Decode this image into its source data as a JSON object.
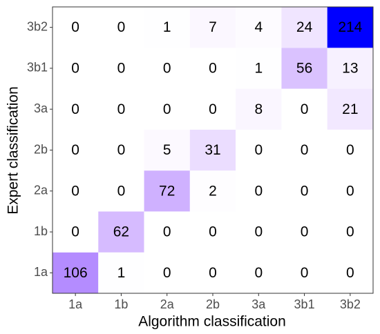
{
  "chart_data": {
    "type": "heatmap",
    "x_label": "Algorithm classification",
    "y_label": "Expert classification",
    "x_categories": [
      "1a",
      "1b",
      "2a",
      "2b",
      "3a",
      "3b1",
      "3b2"
    ],
    "y_categories": [
      "1a",
      "1b",
      "2a",
      "2b",
      "3a",
      "3b1",
      "3b2"
    ],
    "values": [
      [
        106,
        1,
        0,
        0,
        0,
        0,
        0
      ],
      [
        0,
        62,
        0,
        0,
        0,
        0,
        0
      ],
      [
        0,
        0,
        72,
        2,
        0,
        0,
        0
      ],
      [
        0,
        0,
        5,
        31,
        0,
        0,
        0
      ],
      [
        0,
        0,
        0,
        0,
        8,
        0,
        21
      ],
      [
        0,
        0,
        0,
        0,
        1,
        56,
        13
      ],
      [
        0,
        0,
        1,
        7,
        4,
        24,
        214
      ]
    ],
    "low_color": "#ffffff",
    "high_color": "#0000ff"
  }
}
